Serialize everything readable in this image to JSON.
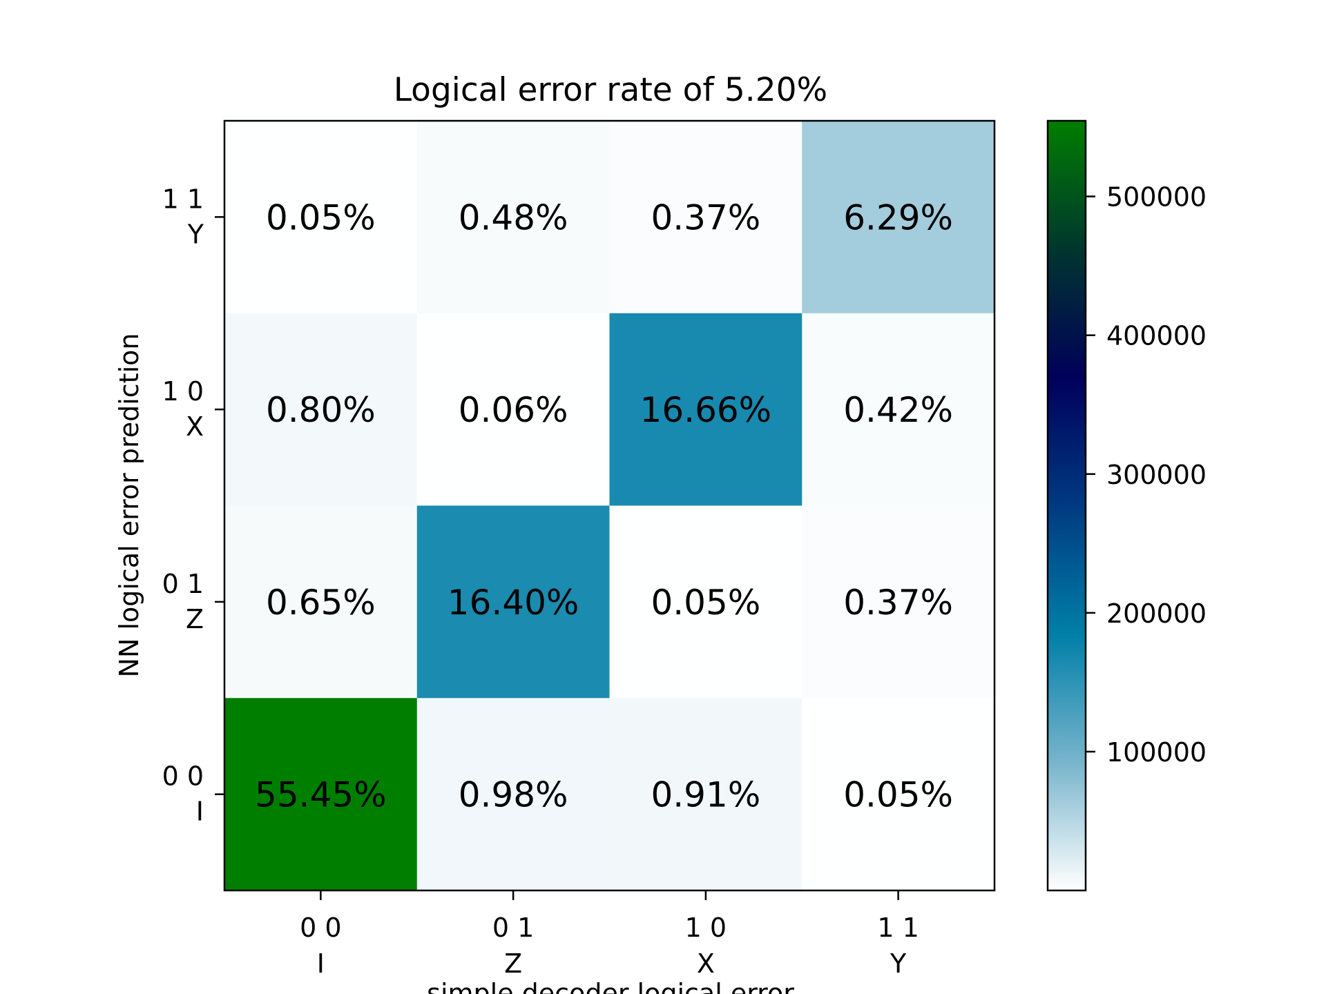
{
  "chart_data": {
    "type": "heatmap",
    "title": "Logical error rate of 5.20%",
    "xlabel": "simple decoder logical error",
    "ylabel": "NN logical error prediction",
    "x_categories": [
      {
        "bits": "0 0",
        "name": "I"
      },
      {
        "bits": "0 1",
        "name": "Z"
      },
      {
        "bits": "1 0",
        "name": "X"
      },
      {
        "bits": "1 1",
        "name": "Y"
      }
    ],
    "y_categories": [
      {
        "bits": "0 0",
        "name": "I"
      },
      {
        "bits": "0 1",
        "name": "Z"
      },
      {
        "bits": "1 0",
        "name": "X"
      },
      {
        "bits": "1 1",
        "name": "Y"
      }
    ],
    "rows": [
      {
        "y": "Y",
        "labels": [
          "0.05%",
          "0.48%",
          "0.37%",
          "6.29%"
        ],
        "values": [
          0.05,
          0.48,
          0.37,
          6.29
        ]
      },
      {
        "y": "X",
        "labels": [
          "0.80%",
          "0.06%",
          "16.66%",
          "0.42%"
        ],
        "values": [
          0.8,
          0.06,
          16.66,
          0.42
        ]
      },
      {
        "y": "Z",
        "labels": [
          "0.65%",
          "16.40%",
          "0.05%",
          "0.37%"
        ],
        "values": [
          0.65,
          16.4,
          0.05,
          0.37
        ]
      },
      {
        "y": "I",
        "labels": [
          "55.45%",
          "0.98%",
          "0.91%",
          "0.05%"
        ],
        "values": [
          55.45,
          0.98,
          0.91,
          0.05
        ]
      }
    ],
    "colorbar": {
      "range": [
        0,
        554500
      ],
      "ticks": [
        100000,
        200000,
        300000,
        400000,
        500000
      ],
      "tick_labels": [
        "100000",
        "200000",
        "300000",
        "400000",
        "500000"
      ],
      "colormap": [
        "#ffffff",
        "#78b4cc",
        "#007fa8",
        "#003a80",
        "#00005a",
        "#00362e",
        "#007e00"
      ]
    }
  }
}
